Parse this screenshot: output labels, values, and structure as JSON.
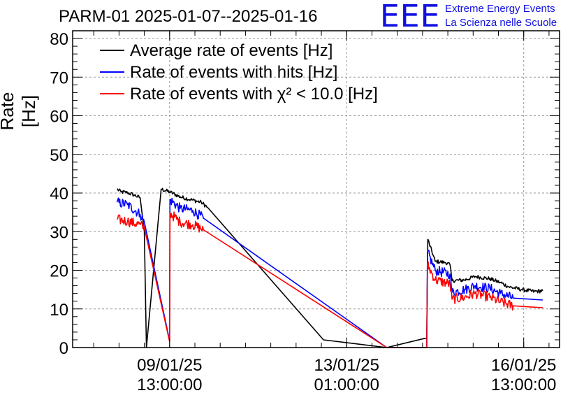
{
  "header": {
    "title": "PARM-01 2025-01-07--2025-01-16",
    "logo_text": "EEE",
    "logo_line1": "Extreme Energy Events",
    "logo_line2": "La Scienza nelle Scuole"
  },
  "chart_data": {
    "type": "line",
    "title": "PARM-01 2025-01-07--2025-01-16",
    "ylabel": "Rate [Hz]",
    "xlabel": "",
    "ylim": [
      0,
      82
    ],
    "yticks": [
      0,
      10,
      20,
      30,
      40,
      50,
      60,
      70,
      80
    ],
    "xlim": [
      "2025-01-07 15:00",
      "2025-01-17 06:00"
    ],
    "xticks": [
      {
        "t": "2025-01-09 13:00",
        "line1": "09/01/25",
        "line2": "13:00:00"
      },
      {
        "t": "2025-01-13 01:00",
        "line1": "13/01/25",
        "line2": "01:00:00"
      },
      {
        "t": "2025-01-16 13:00",
        "line1": "16/01/25",
        "line2": "13:00:00"
      }
    ],
    "grid": true,
    "legend_position": "top-left",
    "series": [
      {
        "name": "Average rate of events [Hz]",
        "color": "#000000",
        "noise": 0.5,
        "points": [
          [
            "2025-01-08 12:00",
            41
          ],
          [
            "2025-01-08 14:00",
            40.3
          ],
          [
            "2025-01-08 17:00",
            40.1
          ],
          [
            "2025-01-08 20:00",
            39.5
          ],
          [
            "2025-01-08 23:00",
            38.8
          ],
          [
            "2025-01-09 01:00",
            30
          ],
          [
            "2025-01-09 02:00",
            0
          ],
          [
            "2025-01-09 09:00",
            41
          ],
          [
            "2025-01-09 13:00",
            40.3
          ],
          [
            "2025-01-09 18:00",
            39
          ],
          [
            "2025-01-09 23:00",
            38.3
          ],
          [
            "2025-01-10 04:00",
            37.6
          ],
          [
            "2025-01-10 07:00",
            36.3
          ],
          [
            "2025-01-12 14:00",
            2
          ],
          [
            "2025-01-13 20:00",
            0
          ],
          [
            "2025-01-14 15:00",
            2.5
          ],
          [
            "2025-01-14 15:30",
            28
          ],
          [
            "2025-01-14 19:00",
            22.3
          ],
          [
            "2025-01-15 00:00",
            22
          ],
          [
            "2025-01-15 02:00",
            21.5
          ],
          [
            "2025-01-15 03:00",
            17.3
          ],
          [
            "2025-01-15 09:00",
            17.5
          ],
          [
            "2025-01-15 14:00",
            18.4
          ],
          [
            "2025-01-15 21:00",
            17.8
          ],
          [
            "2025-01-16 02:00",
            16.8
          ],
          [
            "2025-01-16 06:00",
            15.7
          ],
          [
            "2025-01-16 12:00",
            15
          ],
          [
            "2025-01-16 18:00",
            14.5
          ],
          [
            "2025-01-16 22:00",
            14.7
          ]
        ]
      },
      {
        "name": "Rate of events with hits [Hz]",
        "color": "#0000ff",
        "noise": 1.3,
        "points": [
          [
            "2025-01-08 12:00",
            37.6
          ],
          [
            "2025-01-08 17:00",
            37
          ],
          [
            "2025-01-08 23:00",
            34.5
          ],
          [
            "2025-01-09 01:00",
            32.5
          ],
          [
            "2025-01-09 13:00",
            1.8
          ],
          [
            "2025-01-09 13:10",
            38.3
          ],
          [
            "2025-01-09 18:00",
            36
          ],
          [
            "2025-01-10 00:00",
            35.5
          ],
          [
            "2025-01-10 05:00",
            33.5
          ],
          [
            "2025-01-13 20:00",
            0
          ],
          [
            "2025-01-14 15:00",
            0
          ],
          [
            "2025-01-14 15:20",
            24.8
          ],
          [
            "2025-01-14 19:00",
            20
          ],
          [
            "2025-01-15 02:00",
            19
          ],
          [
            "2025-01-15 03:00",
            14.3
          ],
          [
            "2025-01-15 09:00",
            15
          ],
          [
            "2025-01-15 14:00",
            16
          ],
          [
            "2025-01-15 21:00",
            15.3
          ],
          [
            "2025-01-16 02:00",
            14
          ],
          [
            "2025-01-16 08:00",
            12.8
          ],
          [
            "2025-01-16 22:00",
            12.3
          ]
        ]
      },
      {
        "name": "Rate of events with χ² < 10.0 [Hz]",
        "color": "#ff0000",
        "noise": 1.3,
        "points": [
          [
            "2025-01-08 12:00",
            33.2
          ],
          [
            "2025-01-08 17:00",
            32.7
          ],
          [
            "2025-01-08 23:00",
            31.8
          ],
          [
            "2025-01-09 01:00",
            31
          ],
          [
            "2025-01-09 13:00",
            1.5
          ],
          [
            "2025-01-09 13:10",
            34.8
          ],
          [
            "2025-01-09 18:00",
            32.5
          ],
          [
            "2025-01-10 00:00",
            31.8
          ],
          [
            "2025-01-10 05:00",
            30.5
          ],
          [
            "2025-01-13 20:00",
            0
          ],
          [
            "2025-01-14 15:00",
            0
          ],
          [
            "2025-01-14 15:20",
            21.5
          ],
          [
            "2025-01-14 19:00",
            17.5
          ],
          [
            "2025-01-15 02:00",
            16.5
          ],
          [
            "2025-01-15 03:00",
            12.5
          ],
          [
            "2025-01-15 09:00",
            13
          ],
          [
            "2025-01-15 14:00",
            14
          ],
          [
            "2025-01-15 21:00",
            13
          ],
          [
            "2025-01-16 02:00",
            11.8
          ],
          [
            "2025-01-16 08:00",
            10.8
          ],
          [
            "2025-01-16 22:00",
            10.3
          ]
        ]
      }
    ]
  }
}
